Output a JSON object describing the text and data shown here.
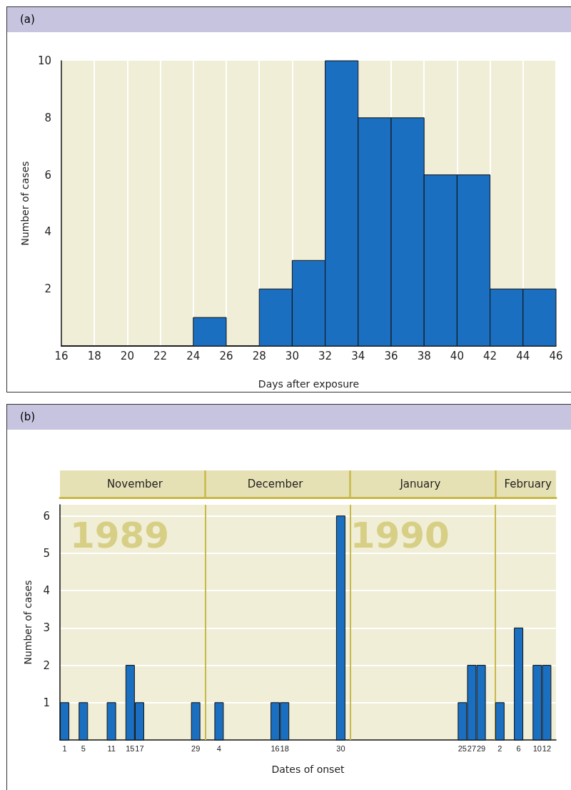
{
  "chart_data": [
    {
      "type": "histogram",
      "title": "(a)",
      "xlabel": "Days after exposure",
      "ylabel": "Number of cases",
      "bins": [
        16,
        18,
        20,
        22,
        24,
        26,
        28,
        30,
        32,
        34,
        36,
        38,
        40,
        42,
        44,
        46
      ],
      "values": [
        0,
        0,
        0,
        0,
        1,
        0,
        2,
        3,
        10,
        8,
        8,
        6,
        6,
        2,
        2
      ],
      "color": "#1a6fc0",
      "xlim": [
        16,
        46
      ],
      "xticks": [
        16,
        18,
        20,
        22,
        24,
        26,
        28,
        30,
        32,
        34,
        36,
        38,
        40,
        42,
        44,
        46
      ],
      "ylim": [
        0,
        10
      ],
      "yticks": [
        2,
        4,
        6,
        8,
        10
      ],
      "grid": "x"
    },
    {
      "type": "bar",
      "title": "(b)",
      "xlabel": "Dates of onset",
      "ylabel": "Number of cases",
      "x": [
        "1989-11-01",
        "1989-11-05",
        "1989-11-11",
        "1989-11-15",
        "1989-11-17",
        "1989-11-29",
        "1989-12-04",
        "1989-12-16",
        "1989-12-18",
        "1989-12-30",
        "1990-01-25",
        "1990-01-27",
        "1990-01-29",
        "1990-02-02",
        "1990-02-06",
        "1990-02-10",
        "1990-02-12"
      ],
      "values": [
        1,
        1,
        1,
        2,
        1,
        1,
        1,
        1,
        1,
        6,
        1,
        2,
        2,
        1,
        3,
        2,
        2
      ],
      "color": "#1a6fc0",
      "xlim": [
        "1989-10-31",
        "1990-02-14"
      ],
      "xticks": [
        {
          "value": "1989-11-01",
          "label": "1"
        },
        {
          "value": "1989-11-05",
          "label": "5"
        },
        {
          "value": "1989-11-11",
          "label": "11"
        },
        {
          "value": "1989-11-15",
          "label": "15"
        },
        {
          "value": "1989-11-17",
          "label": "17"
        },
        {
          "value": "1989-11-29",
          "label": "29"
        },
        {
          "value": "1989-12-04",
          "label": "4"
        },
        {
          "value": "1989-12-16",
          "label": "16"
        },
        {
          "value": "1989-12-18",
          "label": "18"
        },
        {
          "value": "1989-12-30",
          "label": "30"
        },
        {
          "value": "1990-01-25",
          "label": "25"
        },
        {
          "value": "1990-01-27",
          "label": "27"
        },
        {
          "value": "1990-01-29",
          "label": "29"
        },
        {
          "value": "1990-02-02",
          "label": "2"
        },
        {
          "value": "1990-02-06",
          "label": "6"
        },
        {
          "value": "1990-02-10",
          "label": "10"
        },
        {
          "value": "1990-02-12",
          "label": "12"
        }
      ],
      "ylim": [
        0,
        6.3
      ],
      "yticks": [
        1,
        2,
        3,
        4,
        5,
        6
      ],
      "grid": "y",
      "x2lim": [
        "1989-10-31",
        "1990-02-14"
      ],
      "x2ticks": [
        {
          "value": "1989-11-16",
          "label": "November"
        },
        {
          "value": "1989-12-01",
          "label": null
        },
        {
          "value": "1989-12-16",
          "label": "December"
        },
        {
          "value": "1990-01-01",
          "label": null
        },
        {
          "value": "1990-01-16",
          "label": "January"
        },
        {
          "value": "1990-02-01",
          "label": null
        },
        {
          "value": "1990-02-08",
          "label": "February"
        }
      ],
      "ref_lines": [
        {
          "axis": "x",
          "value": "1989-12-01",
          "color": "#c8b84a"
        },
        {
          "axis": "x",
          "value": "1990-01-01",
          "color": "#c8b84a"
        },
        {
          "axis": "x",
          "value": "1990-02-01",
          "color": "#c8b84a"
        }
      ],
      "annotations": [
        "1989",
        "1990"
      ]
    }
  ]
}
